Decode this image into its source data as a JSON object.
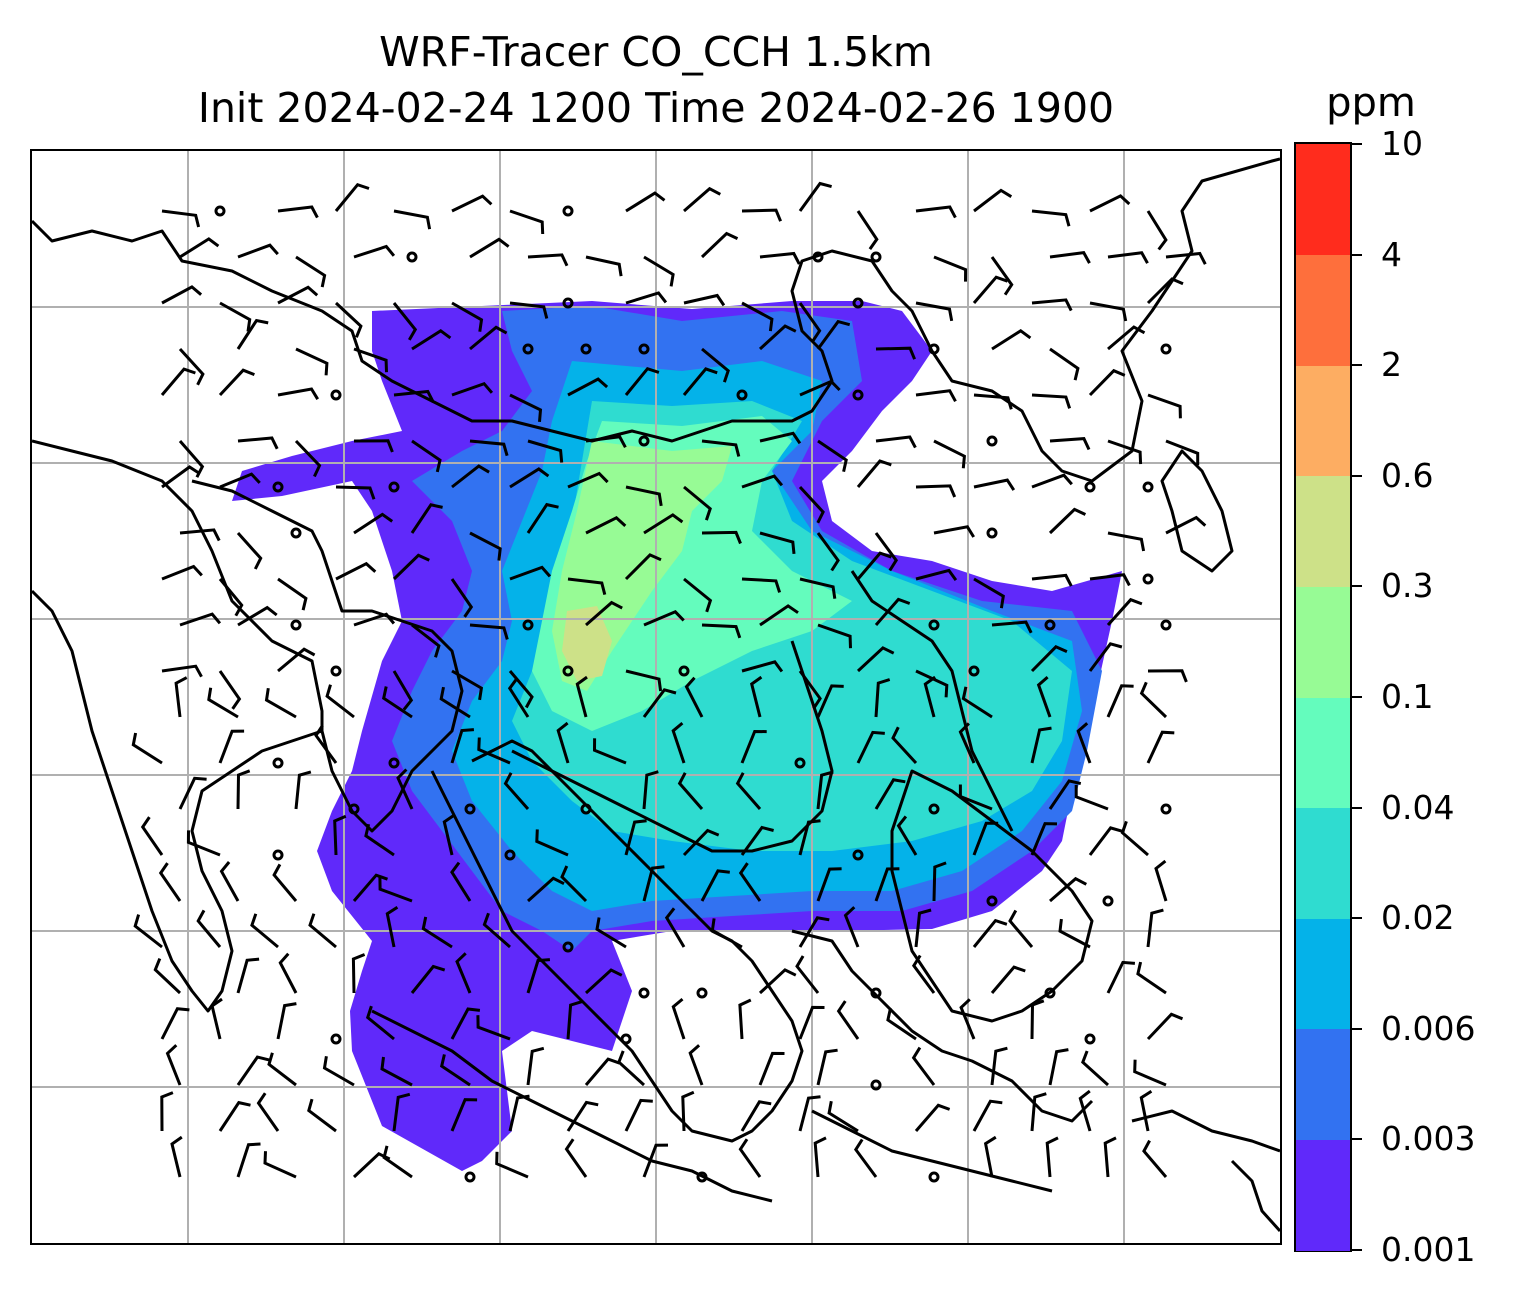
{
  "title": {
    "line1": "WRF-Tracer CO_CCH 1.5km",
    "line2": "Init 2024-02-24 1200 Time 2024-02-26 1900"
  },
  "colorbar": {
    "unit": "ppm",
    "levels": [
      "0.001",
      "0.003",
      "0.006",
      "0.02",
      "0.04",
      "0.1",
      "0.3",
      "0.6",
      "2",
      "4",
      "10"
    ],
    "colors": [
      "#6029fa",
      "#3272f1",
      "#04b2e9",
      "#2fdcd0",
      "#64fcbd",
      "#97fb95",
      "#cde188",
      "#fdad62",
      "#fe6f3c",
      "#ff2c1d"
    ]
  },
  "map": {
    "gridlines": true,
    "wind_barbs": true,
    "field": "CO_CCH tracer concentration at 1.5km"
  }
}
